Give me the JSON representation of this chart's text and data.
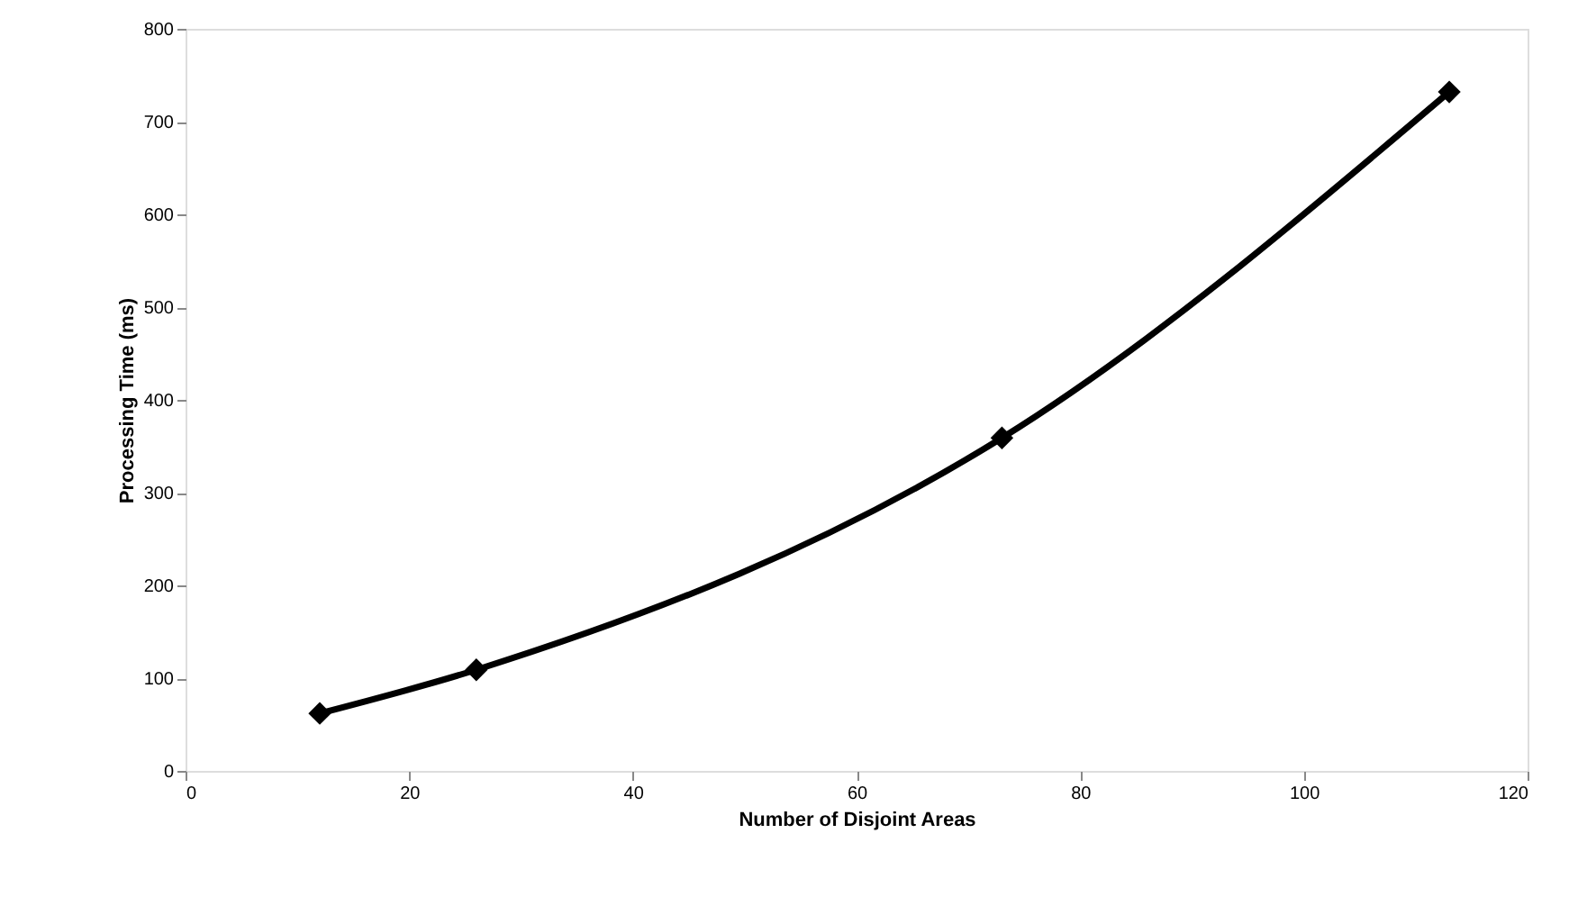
{
  "chart_data": {
    "type": "line",
    "xlabel": "Number of Disjoint Areas",
    "ylabel": "Processing Time (ms)",
    "x": [
      12,
      26,
      73,
      113
    ],
    "series": [
      {
        "color": "#000000",
        "values": [
          62,
          109,
          359,
          732
        ]
      }
    ],
    "xlim": [
      0,
      120
    ],
    "xticks": [
      0,
      20,
      40,
      60,
      80,
      100,
      120
    ],
    "ylim": [
      0,
      800
    ],
    "yticks": [
      0,
      100,
      200,
      300,
      400,
      500,
      600,
      700,
      800
    ],
    "grid": false,
    "marker": "diamond",
    "line_style": "solid"
  }
}
